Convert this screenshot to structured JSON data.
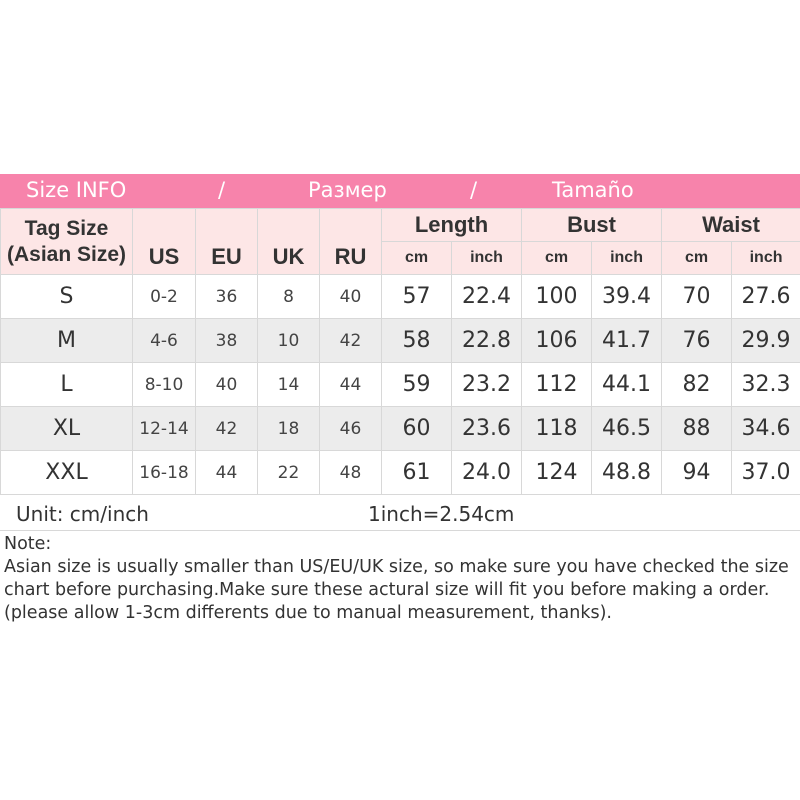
{
  "banner": {
    "en": "Size INFO",
    "sep1": "/",
    "ru": "Размер",
    "sep2": "/",
    "es": "Tamaño",
    "color": "#f783ab"
  },
  "header": {
    "tag_size": "Tag Size",
    "tag_size_sub": "(Asian Size)",
    "us": "US",
    "eu": "EU",
    "uk": "UK",
    "ru": "RU",
    "length": "Length",
    "bust": "Bust",
    "waist": "Waist",
    "cm": "cm",
    "inch": "inch"
  },
  "rows": [
    [
      "S",
      "0-2",
      "36",
      "8",
      "40",
      "57",
      "22.4",
      "100",
      "39.4",
      "70",
      "27.6"
    ],
    [
      "M",
      "4-6",
      "38",
      "10",
      "42",
      "58",
      "22.8",
      "106",
      "41.7",
      "76",
      "29.9"
    ],
    [
      "L",
      "8-10",
      "40",
      "14",
      "44",
      "59",
      "23.2",
      "112",
      "44.1",
      "82",
      "32.3"
    ],
    [
      "XL",
      "12-14",
      "42",
      "18",
      "46",
      "60",
      "23.6",
      "118",
      "46.5",
      "88",
      "34.6"
    ],
    [
      "XXL",
      "16-18",
      "44",
      "22",
      "48",
      "61",
      "24.0",
      "124",
      "48.8",
      "94",
      "37.0"
    ]
  ],
  "unit": {
    "label": "Unit: cm/inch",
    "conversion": "1inch=2.54cm"
  },
  "notes": {
    "title": "Note:",
    "text": "Asian size is usually smaller than US/EU/UK size, so make sure you have checked the size chart before purchasing.Make sure these actural size will fit you before making a order.(please allow 1-3cm differents due to manual measurement, thanks)."
  }
}
